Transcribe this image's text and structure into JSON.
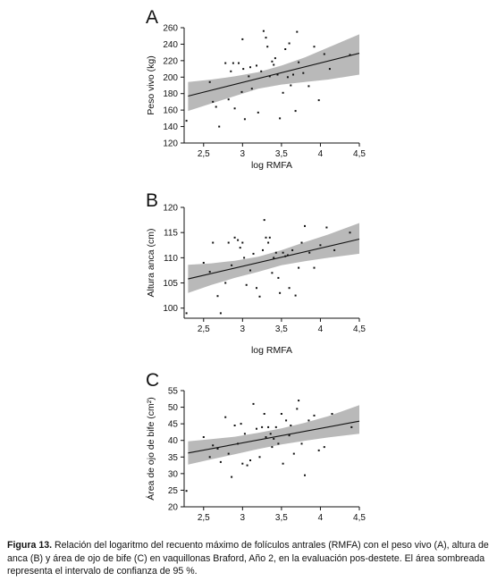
{
  "chart_data": [
    {
      "type": "scatter",
      "panel": "A",
      "xlabel": "log RMFA",
      "ylabel": "Peso vivo (kg)",
      "xlim": [
        2.25,
        4.5
      ],
      "ylim": [
        120,
        260
      ],
      "xticks": [
        2.5,
        3,
        3.5,
        4,
        4.5
      ],
      "xtick_labels": [
        "2,5",
        "3",
        "3,5",
        "4",
        "4,5"
      ],
      "yticks": [
        120,
        140,
        160,
        180,
        200,
        220,
        240,
        260
      ],
      "ytick_labels": [
        "120",
        "140",
        "160",
        "180",
        "200",
        "220",
        "240",
        "260"
      ],
      "points": [
        [
          2.28,
          147
        ],
        [
          2.58,
          194
        ],
        [
          2.62,
          170
        ],
        [
          2.66,
          164
        ],
        [
          2.7,
          140
        ],
        [
          2.78,
          217
        ],
        [
          2.82,
          173
        ],
        [
          2.85,
          207
        ],
        [
          2.88,
          217
        ],
        [
          2.9,
          162
        ],
        [
          2.95,
          217
        ],
        [
          2.99,
          182
        ],
        [
          3.0,
          246
        ],
        [
          3.01,
          210
        ],
        [
          3.03,
          149
        ],
        [
          3.08,
          201
        ],
        [
          3.1,
          212
        ],
        [
          3.12,
          186
        ],
        [
          3.18,
          214
        ],
        [
          3.2,
          157
        ],
        [
          3.24,
          207
        ],
        [
          3.27,
          256
        ],
        [
          3.3,
          248
        ],
        [
          3.32,
          237
        ],
        [
          3.35,
          201
        ],
        [
          3.38,
          219
        ],
        [
          3.4,
          215
        ],
        [
          3.42,
          223
        ],
        [
          3.45,
          203
        ],
        [
          3.48,
          150
        ],
        [
          3.52,
          181
        ],
        [
          3.55,
          234
        ],
        [
          3.58,
          200
        ],
        [
          3.6,
          241
        ],
        [
          3.62,
          190
        ],
        [
          3.65,
          203
        ],
        [
          3.68,
          159
        ],
        [
          3.7,
          255
        ],
        [
          3.72,
          218
        ],
        [
          3.78,
          205
        ],
        [
          3.85,
          189
        ],
        [
          3.92,
          237
        ],
        [
          3.98,
          172
        ],
        [
          4.05,
          228
        ],
        [
          4.12,
          210
        ],
        [
          4.38,
          227
        ]
      ],
      "fit": {
        "x": [
          2.3,
          4.5
        ],
        "y": [
          177,
          229
        ]
      },
      "ci": {
        "x": [
          2.3,
          2.6,
          2.9,
          3.2,
          3.5,
          3.8,
          4.1,
          4.5
        ],
        "upper": [
          194,
          197,
          201,
          206,
          214,
          224,
          236,
          252
        ],
        "lower": [
          159,
          168,
          177,
          186,
          191,
          194,
          197,
          203
        ]
      },
      "colors": {
        "points": "#111111",
        "line": "#111111",
        "band": "#b9b9b9"
      }
    },
    {
      "type": "scatter",
      "panel": "B",
      "xlabel": "log RMFA",
      "ylabel": "Altura anca (cm)",
      "xlim": [
        2.25,
        4.5
      ],
      "ylim": [
        98,
        120
      ],
      "xticks": [
        2.5,
        3,
        3.5,
        4,
        4.5
      ],
      "xtick_labels": [
        "2,5",
        "3",
        "3,5",
        "4",
        "4,5"
      ],
      "yticks": [
        100,
        105,
        110,
        115,
        120
      ],
      "ytick_labels": [
        "100",
        "105",
        "110",
        "115",
        "120"
      ],
      "points": [
        [
          2.28,
          99.0
        ],
        [
          2.5,
          109.0
        ],
        [
          2.58,
          107.2
        ],
        [
          2.62,
          113.0
        ],
        [
          2.68,
          102.4
        ],
        [
          2.72,
          99.0
        ],
        [
          2.78,
          105.0
        ],
        [
          2.82,
          113.0
        ],
        [
          2.86,
          108.5
        ],
        [
          2.9,
          114.0
        ],
        [
          2.94,
          113.5
        ],
        [
          2.97,
          112.0
        ],
        [
          3.0,
          113.0
        ],
        [
          3.02,
          110.0
        ],
        [
          3.05,
          104.6
        ],
        [
          3.1,
          107.5
        ],
        [
          3.14,
          110.8
        ],
        [
          3.18,
          104.0
        ],
        [
          3.22,
          102.3
        ],
        [
          3.26,
          111.5
        ],
        [
          3.28,
          117.5
        ],
        [
          3.3,
          114.0
        ],
        [
          3.33,
          113.0
        ],
        [
          3.35,
          114.0
        ],
        [
          3.38,
          107.0
        ],
        [
          3.4,
          110.0
        ],
        [
          3.43,
          111.0
        ],
        [
          3.46,
          106.0
        ],
        [
          3.48,
          103.0
        ],
        [
          3.52,
          111.0
        ],
        [
          3.55,
          110.3
        ],
        [
          3.58,
          110.5
        ],
        [
          3.6,
          104.0
        ],
        [
          3.64,
          111.5
        ],
        [
          3.68,
          102.5
        ],
        [
          3.72,
          108.0
        ],
        [
          3.76,
          113.0
        ],
        [
          3.8,
          116.3
        ],
        [
          3.86,
          111.0
        ],
        [
          3.92,
          108.0
        ],
        [
          4.0,
          112.5
        ],
        [
          4.08,
          116.0
        ],
        [
          4.18,
          111.5
        ],
        [
          4.38,
          115.0
        ]
      ],
      "fit": {
        "x": [
          2.3,
          4.5
        ],
        "y": [
          105.8,
          113.7
        ]
      },
      "ci": {
        "x": [
          2.3,
          2.6,
          2.9,
          3.2,
          3.5,
          3.8,
          4.1,
          4.5
        ],
        "upper": [
          108.6,
          108.9,
          109.4,
          110.2,
          111.5,
          113.1,
          114.6,
          116.9
        ],
        "lower": [
          103.0,
          104.6,
          106.0,
          107.2,
          108.5,
          109.3,
          110.0,
          110.8
        ]
      },
      "colors": {
        "points": "#111111",
        "line": "#111111",
        "band": "#b9b9b9"
      }
    },
    {
      "type": "scatter",
      "panel": "C",
      "xlabel": "",
      "ylabel": "Área de ojo de bife (cm²)",
      "xlim": [
        2.25,
        4.5
      ],
      "ylim": [
        20,
        55
      ],
      "xticks": [
        2.5,
        3,
        3.5,
        4,
        4.5
      ],
      "xtick_labels": [
        "2,5",
        "3",
        "3,5",
        "4",
        "4,5"
      ],
      "yticks": [
        20,
        25,
        30,
        35,
        40,
        45,
        50,
        55
      ],
      "ytick_labels": [
        "20",
        "25",
        "30",
        "35",
        "40",
        "45",
        "50",
        "55"
      ],
      "points": [
        [
          2.28,
          24.8
        ],
        [
          2.5,
          41.0
        ],
        [
          2.58,
          35.0
        ],
        [
          2.62,
          38.5
        ],
        [
          2.68,
          37.5
        ],
        [
          2.72,
          33.5
        ],
        [
          2.78,
          47.0
        ],
        [
          2.82,
          36.0
        ],
        [
          2.86,
          29.0
        ],
        [
          2.9,
          44.5
        ],
        [
          2.94,
          39.0
        ],
        [
          2.98,
          45.0
        ],
        [
          3.0,
          33.0
        ],
        [
          3.03,
          42.0
        ],
        [
          3.06,
          32.5
        ],
        [
          3.1,
          34.0
        ],
        [
          3.14,
          51.0
        ],
        [
          3.18,
          43.5
        ],
        [
          3.22,
          35.0
        ],
        [
          3.25,
          44.0
        ],
        [
          3.28,
          48.0
        ],
        [
          3.3,
          41.0
        ],
        [
          3.33,
          44.0
        ],
        [
          3.36,
          42.0
        ],
        [
          3.38,
          38.0
        ],
        [
          3.4,
          40.5
        ],
        [
          3.43,
          44.0
        ],
        [
          3.46,
          39.0
        ],
        [
          3.5,
          48.0
        ],
        [
          3.52,
          33.0
        ],
        [
          3.56,
          46.0
        ],
        [
          3.6,
          41.5
        ],
        [
          3.62,
          44.5
        ],
        [
          3.66,
          36.0
        ],
        [
          3.7,
          49.5
        ],
        [
          3.72,
          52.0
        ],
        [
          3.76,
          39.0
        ],
        [
          3.8,
          29.5
        ],
        [
          3.85,
          46.0
        ],
        [
          3.92,
          47.5
        ],
        [
          3.98,
          37.0
        ],
        [
          4.05,
          38.0
        ],
        [
          4.15,
          48.0
        ],
        [
          4.4,
          44.0
        ]
      ],
      "fit": {
        "x": [
          2.3,
          4.5
        ],
        "y": [
          36.2,
          45.8
        ]
      },
      "ci": {
        "x": [
          2.3,
          2.6,
          2.9,
          3.2,
          3.5,
          3.8,
          4.1,
          4.5
        ],
        "upper": [
          39.7,
          40.4,
          41.1,
          42.3,
          43.6,
          45.3,
          47.3,
          50.6
        ],
        "lower": [
          32.7,
          34.3,
          35.8,
          37.4,
          38.8,
          39.9,
          40.9,
          42.0
        ]
      },
      "colors": {
        "points": "#111111",
        "line": "#111111",
        "band": "#b9b9b9"
      }
    }
  ],
  "caption": {
    "label": "Figura 13.",
    "text": "Relación del logaritmo del recuento máximo de folículos antrales (RMFA) con el peso vivo (A), altura de anca (B) y área de ojo de bife (C) en vaquillonas Braford, Año 2, en la evaluación pos-destete. El área sombreada representa el intervalo de confianza de 95 %."
  }
}
